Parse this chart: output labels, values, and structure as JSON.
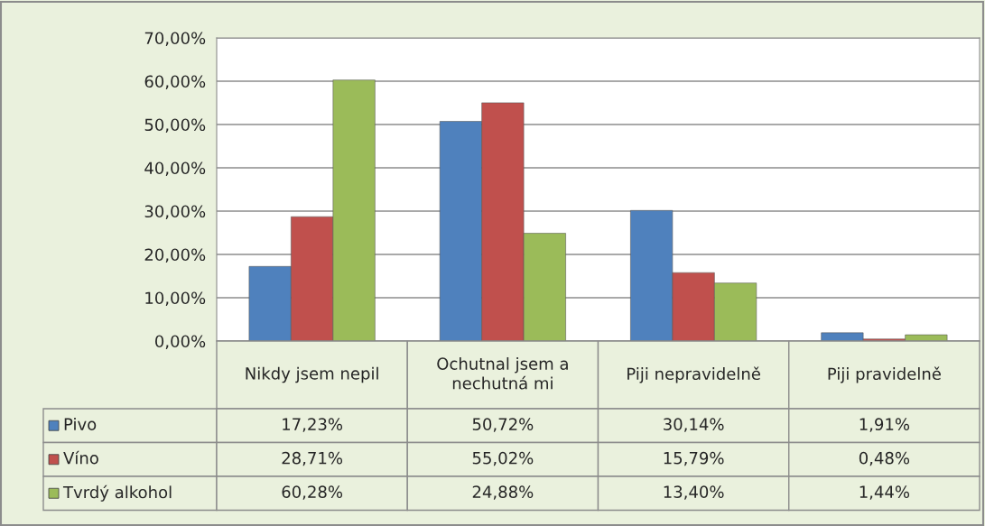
{
  "chart_data": {
    "type": "bar",
    "categories": [
      "Nikdy jsem nepil",
      "Ochutnal jsem a nechutná mi",
      "Piji nepravidelně",
      "Piji pravidelně"
    ],
    "series": [
      {
        "name": "Pivo",
        "color": "#4f81bd",
        "values": [
          17.23,
          50.72,
          30.14,
          1.91
        ],
        "value_labels": [
          "17,23%",
          "50,72%",
          "30,14%",
          "1,91%"
        ]
      },
      {
        "name": "Víno",
        "color": "#c0504d",
        "values": [
          28.71,
          55.02,
          15.79,
          0.48
        ],
        "value_labels": [
          "28,71%",
          "55,02%",
          "15,79%",
          "0,48%"
        ]
      },
      {
        "name": "Tvrdý alkohol",
        "color": "#9bbb59",
        "values": [
          60.28,
          24.88,
          13.4,
          1.44
        ],
        "value_labels": [
          "60,28%",
          "24,88%",
          "13,40%",
          "1,44%"
        ]
      }
    ],
    "ylim": [
      0,
      70
    ],
    "yticks": [
      {
        "value": 0,
        "label": "0,00%"
      },
      {
        "value": 10,
        "label": "10,00%"
      },
      {
        "value": 20,
        "label": "20,00%"
      },
      {
        "value": 30,
        "label": "30,00%"
      },
      {
        "value": 40,
        "label": "40,00%"
      },
      {
        "value": 50,
        "label": "50,00%"
      },
      {
        "value": 60,
        "label": "60,00%"
      },
      {
        "value": 70,
        "label": "70,00%"
      }
    ],
    "grid": "y",
    "legend": "bottom left"
  }
}
